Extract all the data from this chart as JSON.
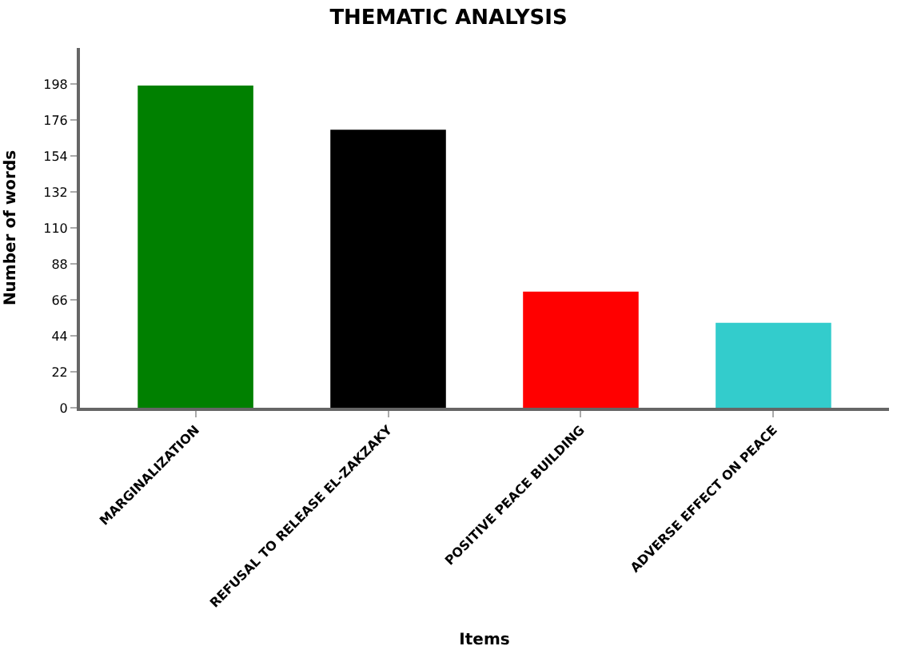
{
  "chart_data": {
    "type": "bar",
    "title": "THEMATIC ANALYSIS",
    "xlabel": "Items",
    "ylabel": "Number of words",
    "categories": [
      "MARGINALIZATION",
      "REFUSAL TO RELEASE EL-ZAKZAKY",
      "POSITIVE PEACE BUILDING",
      "ADVERSE EFFECT ON PEACE"
    ],
    "values": [
      197,
      170,
      71,
      52
    ],
    "colors": [
      "#008000",
      "#000000",
      "#ff0000",
      "#33cccc"
    ],
    "ylim": [
      0,
      220
    ],
    "yticks": [
      0,
      22,
      44,
      66,
      88,
      110,
      132,
      154,
      176,
      198
    ]
  }
}
